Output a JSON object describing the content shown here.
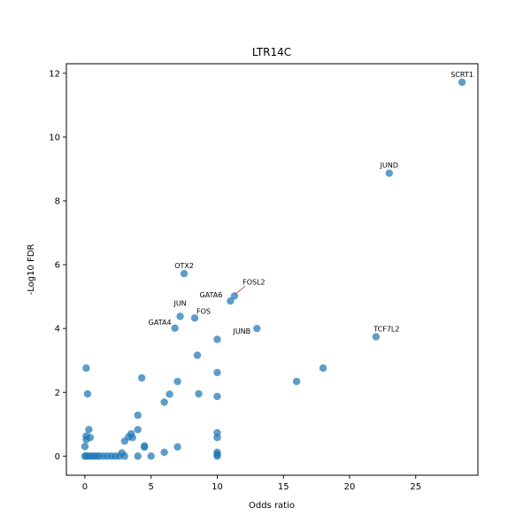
{
  "chart_data": {
    "type": "scatter",
    "title": "LTR14C",
    "xlabel": "Odds ratio",
    "ylabel": "-Log10 FDR",
    "xlim": [
      -1.4,
      29.7
    ],
    "ylim": [
      -0.6,
      12.3
    ],
    "xticks": [
      0,
      5,
      10,
      15,
      20,
      25
    ],
    "yticks": [
      0,
      2,
      4,
      6,
      8,
      10,
      12
    ],
    "grid": false,
    "marker_color": "#1f77b4",
    "leader_color": "#d62728",
    "points": [
      {
        "x": 28.5,
        "y": 11.72
      },
      {
        "x": 23.0,
        "y": 8.87
      },
      {
        "x": 7.5,
        "y": 5.72
      },
      {
        "x": 11.3,
        "y": 5.02
      },
      {
        "x": 11.0,
        "y": 4.86
      },
      {
        "x": 7.2,
        "y": 4.38
      },
      {
        "x": 8.3,
        "y": 4.33
      },
      {
        "x": 6.8,
        "y": 4.01
      },
      {
        "x": 13.0,
        "y": 4.0
      },
      {
        "x": 22.0,
        "y": 3.74
      },
      {
        "x": 10.0,
        "y": 3.66
      },
      {
        "x": 8.5,
        "y": 3.16
      },
      {
        "x": 0.1,
        "y": 2.76
      },
      {
        "x": 18.0,
        "y": 2.76
      },
      {
        "x": 10.0,
        "y": 2.62
      },
      {
        "x": 4.3,
        "y": 2.45
      },
      {
        "x": 7.0,
        "y": 2.34
      },
      {
        "x": 16.0,
        "y": 2.34
      },
      {
        "x": 0.2,
        "y": 1.95
      },
      {
        "x": 6.4,
        "y": 1.94
      },
      {
        "x": 8.6,
        "y": 1.95
      },
      {
        "x": 10.0,
        "y": 1.87
      },
      {
        "x": 6.0,
        "y": 1.69
      },
      {
        "x": 4.0,
        "y": 1.28
      },
      {
        "x": 0.3,
        "y": 0.83
      },
      {
        "x": 4.0,
        "y": 0.83
      },
      {
        "x": 10.0,
        "y": 0.73
      },
      {
        "x": 3.5,
        "y": 0.7
      },
      {
        "x": 0.1,
        "y": 0.63
      },
      {
        "x": 0.4,
        "y": 0.58
      },
      {
        "x": 3.3,
        "y": 0.6
      },
      {
        "x": 3.6,
        "y": 0.58
      },
      {
        "x": 10.0,
        "y": 0.58
      },
      {
        "x": 0.1,
        "y": 0.52
      },
      {
        "x": 3.0,
        "y": 0.47
      },
      {
        "x": 0.0,
        "y": 0.3
      },
      {
        "x": 4.5,
        "y": 0.32
      },
      {
        "x": 4.5,
        "y": 0.28
      },
      {
        "x": 7.0,
        "y": 0.29
      },
      {
        "x": 6.0,
        "y": 0.12
      },
      {
        "x": 10.0,
        "y": 0.12
      },
      {
        "x": 2.8,
        "y": 0.1
      },
      {
        "x": 0.0,
        "y": 0.0
      },
      {
        "x": 0.1,
        "y": 0.0
      },
      {
        "x": 0.3,
        "y": 0.0
      },
      {
        "x": 0.5,
        "y": 0.0
      },
      {
        "x": 0.7,
        "y": 0.0
      },
      {
        "x": 0.9,
        "y": 0.0
      },
      {
        "x": 1.1,
        "y": 0.0
      },
      {
        "x": 1.4,
        "y": 0.0
      },
      {
        "x": 1.7,
        "y": 0.0
      },
      {
        "x": 2.0,
        "y": 0.0
      },
      {
        "x": 2.3,
        "y": 0.0
      },
      {
        "x": 2.6,
        "y": 0.0
      },
      {
        "x": 3.0,
        "y": 0.0
      },
      {
        "x": 4.0,
        "y": 0.0
      },
      {
        "x": 5.0,
        "y": 0.0
      },
      {
        "x": 10.0,
        "y": 0.0
      },
      {
        "x": 10.0,
        "y": 0.05
      }
    ],
    "annotations": [
      {
        "text": "SCRT1",
        "x": 28.5,
        "y": 11.72
      },
      {
        "text": "JUND",
        "x": 23.0,
        "y": 8.87
      },
      {
        "text": "OTX2",
        "x": 7.5,
        "y": 5.72
      },
      {
        "text": "FOSL2",
        "x": 11.3,
        "y": 5.02
      },
      {
        "text": "GATA6",
        "x": 11.0,
        "y": 4.86
      },
      {
        "text": "JUN",
        "x": 7.2,
        "y": 4.38
      },
      {
        "text": "FOS",
        "x": 8.3,
        "y": 4.33
      },
      {
        "text": "GATA4",
        "x": 6.8,
        "y": 4.01
      },
      {
        "text": "JUNB",
        "x": 13.0,
        "y": 4.0
      },
      {
        "text": "TCF7L2",
        "x": 22.0,
        "y": 3.74
      }
    ]
  }
}
